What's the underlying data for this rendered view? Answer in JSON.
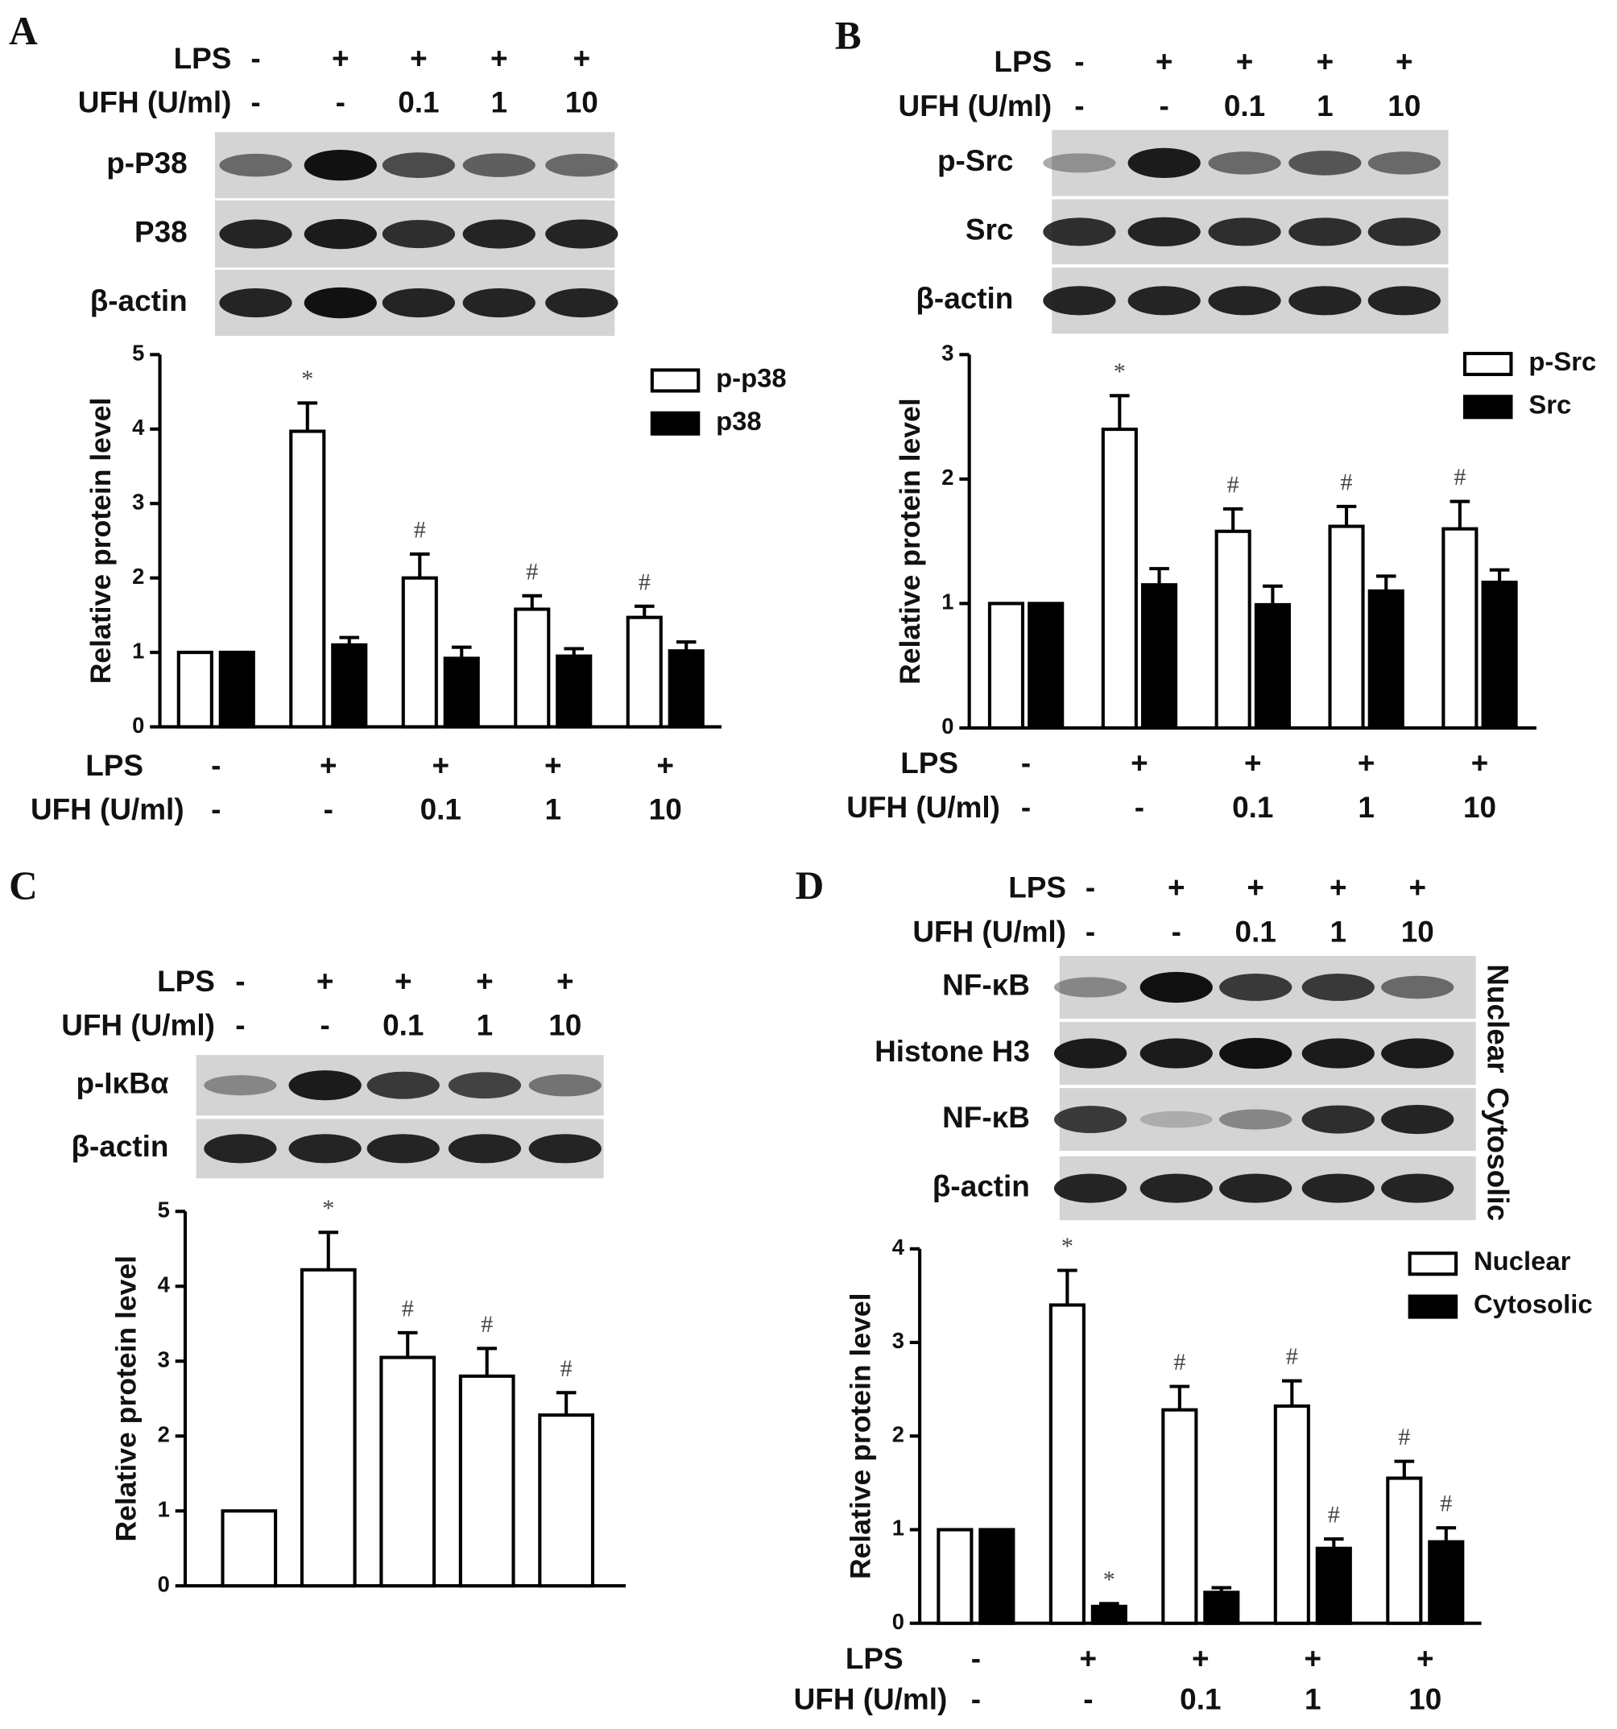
{
  "chart_data": [
    {
      "type": "bar",
      "panel": "A",
      "blot": {
        "rows": [
          "p-P38",
          "P38",
          "β-actin"
        ]
      },
      "treatments": [
        {
          "label": "LPS",
          "values": [
            "-",
            "+",
            "+",
            "+",
            "+"
          ]
        },
        {
          "label": "UFH (U/ml)",
          "values": [
            "-",
            "-",
            "0.1",
            "1",
            "10"
          ]
        }
      ],
      "y_label": "Relative protein level",
      "ylim": [
        0,
        5
      ],
      "yticks": [
        0,
        1,
        2,
        3,
        4,
        5
      ],
      "legend": "top-right",
      "series": [
        {
          "name": "p-p38",
          "color": "#ffffff",
          "values": [
            1,
            3.97,
            2.0,
            1.58,
            1.47
          ],
          "errors": [
            0,
            0.38,
            0.32,
            0.18,
            0.15
          ],
          "markers": [
            null,
            "*",
            "#",
            "#",
            "#"
          ]
        },
        {
          "name": "p38",
          "color": "#000000",
          "values": [
            1,
            1.1,
            0.92,
            0.95,
            1.02
          ],
          "errors": [
            0,
            0.1,
            0.15,
            0.1,
            0.12
          ]
        }
      ]
    },
    {
      "type": "bar",
      "panel": "B",
      "blot": {
        "rows": [
          "p-Src",
          "Src",
          "β-actin"
        ]
      },
      "treatments": [
        {
          "label": "LPS",
          "values": [
            "-",
            "+",
            "+",
            "+",
            "+"
          ]
        },
        {
          "label": "UFH (U/ml)",
          "values": [
            "-",
            "-",
            "0.1",
            "1",
            "10"
          ]
        }
      ],
      "y_label": "Relative protein level",
      "ylim": [
        0,
        3
      ],
      "yticks": [
        0,
        1,
        2,
        3
      ],
      "legend": "top-right",
      "series": [
        {
          "name": "p-Src",
          "color": "#ffffff",
          "values": [
            1,
            2.4,
            1.58,
            1.62,
            1.6
          ],
          "errors": [
            0,
            0.27,
            0.18,
            0.16,
            0.22
          ],
          "markers": [
            null,
            "*",
            "#",
            "#",
            "#"
          ]
        },
        {
          "name": "Src",
          "color": "#000000",
          "values": [
            1,
            1.15,
            0.99,
            1.1,
            1.17
          ],
          "errors": [
            0,
            0.13,
            0.15,
            0.12,
            0.1
          ]
        }
      ]
    },
    {
      "type": "bar",
      "panel": "C",
      "blot": {
        "rows": [
          "p-IκBα",
          "β-actin"
        ]
      },
      "treatments": [
        {
          "label": "LPS",
          "values": [
            "-",
            "+",
            "+",
            "+",
            "+"
          ]
        },
        {
          "label": "UFH (U/ml)",
          "values": [
            "-",
            "-",
            "0.1",
            "1",
            "10"
          ]
        }
      ],
      "y_label": "Relative protein level",
      "ylim": [
        0,
        5
      ],
      "yticks": [
        0,
        1,
        2,
        3,
        4,
        5
      ],
      "series": [
        {
          "color": "#ffffff",
          "values": [
            1,
            4.22,
            3.05,
            2.8,
            2.28
          ],
          "errors": [
            0,
            0.5,
            0.33,
            0.37,
            0.3
          ],
          "markers": [
            null,
            "*",
            "#",
            "#",
            "#"
          ]
        }
      ]
    },
    {
      "type": "bar",
      "panel": "D",
      "blot": {
        "rows": [
          "NF-κB",
          "Histone H3",
          "NF-κB",
          "β-actin"
        ],
        "side_labels": [
          "Nuclear",
          "Cytosolic"
        ]
      },
      "treatments": [
        {
          "label": "LPS",
          "values": [
            "-",
            "+",
            "+",
            "+",
            "+"
          ]
        },
        {
          "label": "UFH (U/ml)",
          "values": [
            "-",
            "-",
            "0.1",
            "1",
            "10"
          ]
        }
      ],
      "y_label": "Relative protein level",
      "ylim": [
        0,
        4
      ],
      "yticks": [
        0,
        1,
        2,
        3,
        4
      ],
      "legend": "top-right",
      "series": [
        {
          "name": "Nuclear",
          "color": "#ffffff",
          "values": [
            1,
            3.4,
            2.28,
            2.32,
            1.55
          ],
          "errors": [
            0,
            0.37,
            0.25,
            0.27,
            0.18
          ],
          "markers": [
            null,
            "*",
            "#",
            "#",
            "#"
          ]
        },
        {
          "name": "Cytosolic",
          "color": "#000000",
          "values": [
            1,
            0.18,
            0.33,
            0.8,
            0.87
          ],
          "errors": [
            0,
            0.03,
            0.05,
            0.1,
            0.15
          ],
          "markers": [
            null,
            "*",
            null,
            "#",
            "#"
          ]
        }
      ]
    }
  ]
}
